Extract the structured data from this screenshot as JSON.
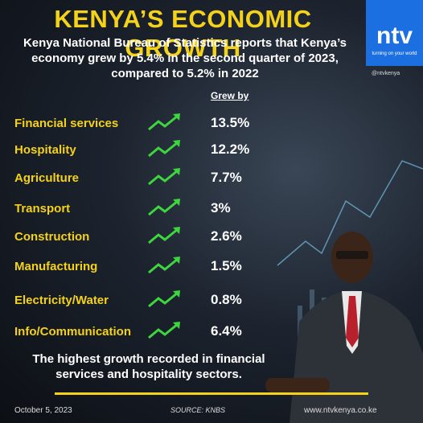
{
  "header": {
    "title": "KENYA’S ECONOMIC GROWTH",
    "subtitle": "Kenya National Bureau of Statistics reports that Kenya’s economy grew by 5.4% in the second quarter of 2023, compared to 5.2% in 2022"
  },
  "logo": {
    "brand": "ntv",
    "tagline": "turning on your world",
    "social": "@ntvkenya"
  },
  "table": {
    "column_header": "Grew by",
    "rows": [
      [
        "Financial services",
        "13.5%"
      ],
      [
        "Hospitality",
        "12.2%"
      ],
      [
        "Agriculture",
        "7.7%"
      ],
      [
        "Transport",
        "3%"
      ],
      [
        "Construction",
        "2.6%"
      ],
      [
        "Manufacturing",
        "1.5%"
      ],
      [
        "Electricity/Water",
        "0.8%"
      ],
      [
        "Info/Communication",
        "6.4%"
      ]
    ]
  },
  "summary": "The highest growth recorded in financial services and hospitality sectors.",
  "footer": {
    "date": "October 5, 2023",
    "source": "SOURCE: KNBS",
    "website": "www.ntvkenya.co.ke"
  }
}
